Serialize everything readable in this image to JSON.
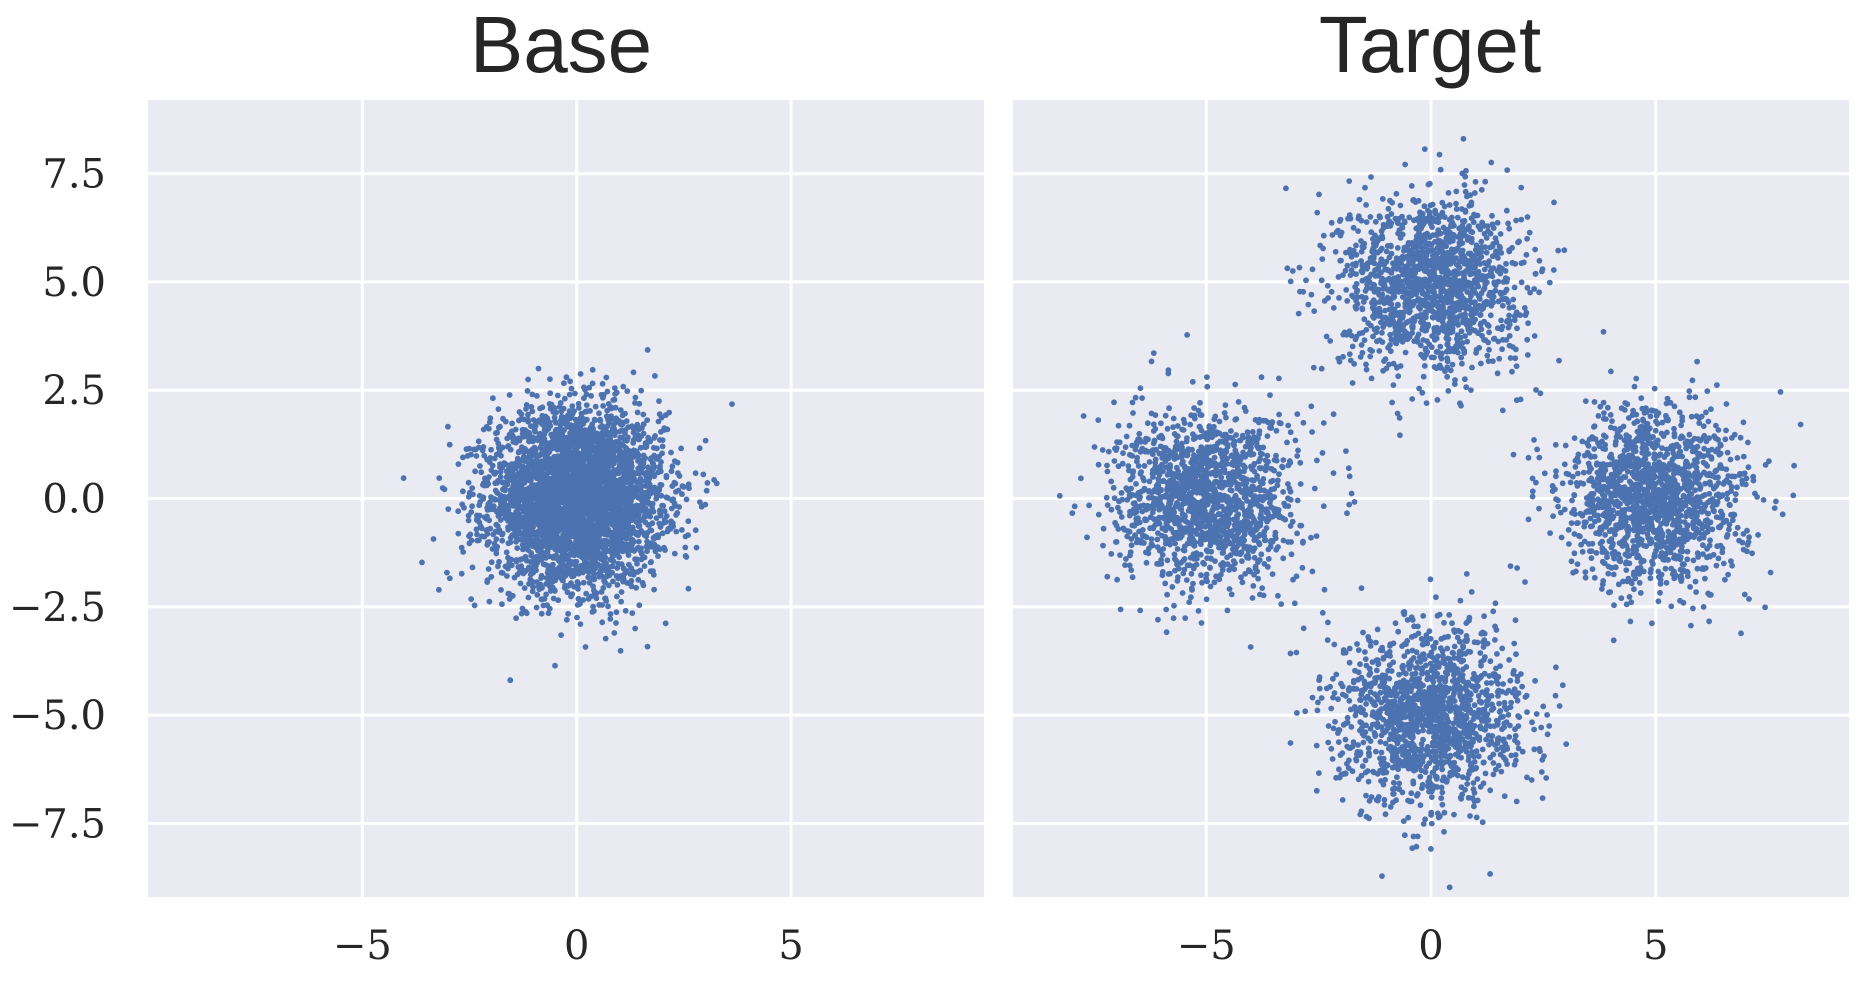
{
  "chart_data": [
    {
      "type": "scatter",
      "title": "Base",
      "xlabel": "",
      "ylabel": "",
      "xlim": [
        -10,
        9.5
      ],
      "ylim": [
        -9.2,
        9.2
      ],
      "x_ticks": [
        -5,
        0,
        5
      ],
      "x_tick_labels": [
        "−5",
        "0",
        "5"
      ],
      "y_ticks": [
        -7.5,
        -5.0,
        -2.5,
        0.0,
        2.5,
        5.0,
        7.5
      ],
      "y_tick_labels": [
        "−7.5",
        "−5.0",
        "−2.5",
        "0.0",
        "2.5",
        "5.0",
        "7.5"
      ],
      "grid": true,
      "color": "#4c72b0",
      "series": [
        {
          "distribution": "gaussian",
          "center": [
            0,
            0
          ],
          "std": 1.0,
          "n_points": 4000
        }
      ]
    },
    {
      "type": "scatter",
      "title": "Target",
      "xlabel": "",
      "ylabel": "",
      "xlim": [
        -9.3,
        9.3
      ],
      "ylim": [
        -9.2,
        9.2
      ],
      "x_ticks": [
        -5,
        0,
        5
      ],
      "x_tick_labels": [
        "−5",
        "0",
        "5"
      ],
      "y_ticks": [
        -7.5,
        -5.0,
        -2.5,
        0.0,
        2.5,
        5.0,
        7.5
      ],
      "y_tick_labels": [],
      "grid": true,
      "color": "#4c72b0",
      "series": [
        {
          "distribution": "gaussian",
          "center": [
            0,
            5
          ],
          "std": 1.0,
          "n_points": 1500
        },
        {
          "distribution": "gaussian",
          "center": [
            -5,
            0
          ],
          "std": 1.0,
          "n_points": 1500
        },
        {
          "distribution": "gaussian",
          "center": [
            5,
            0
          ],
          "std": 1.0,
          "n_points": 1500
        },
        {
          "distribution": "gaussian",
          "center": [
            0,
            -5
          ],
          "std": 1.0,
          "n_points": 1500
        }
      ]
    }
  ]
}
